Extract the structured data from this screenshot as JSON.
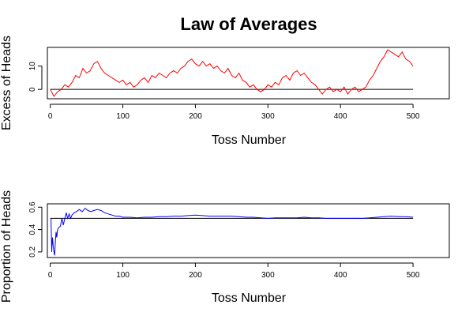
{
  "chart_title": "Law of Averages",
  "colors": {
    "excess_series": "#ff0000",
    "proportion_series": "#0000ff",
    "reference": "#000000"
  },
  "chart_data": [
    {
      "type": "line",
      "xlabel": "Toss Number",
      "ylabel": "Excess of Heads",
      "xlim": [
        0,
        500
      ],
      "ylim": [
        -4,
        18
      ],
      "xticks": [
        0,
        100,
        200,
        300,
        400,
        500
      ],
      "yticks": [
        0,
        10
      ],
      "reference_line": {
        "y": 0
      },
      "grid": false,
      "series": [
        {
          "color": "#ff0000",
          "x": [
            0,
            5,
            10,
            15,
            20,
            25,
            30,
            35,
            40,
            45,
            50,
            55,
            60,
            65,
            70,
            75,
            80,
            85,
            90,
            95,
            100,
            105,
            110,
            115,
            120,
            125,
            130,
            135,
            140,
            145,
            150,
            155,
            160,
            165,
            170,
            175,
            180,
            185,
            190,
            195,
            200,
            205,
            210,
            215,
            220,
            225,
            230,
            235,
            240,
            245,
            250,
            255,
            260,
            265,
            270,
            275,
            280,
            285,
            290,
            295,
            300,
            305,
            310,
            315,
            320,
            325,
            330,
            335,
            340,
            345,
            350,
            355,
            360,
            365,
            370,
            375,
            380,
            385,
            390,
            395,
            400,
            405,
            410,
            415,
            420,
            425,
            430,
            435,
            440,
            445,
            450,
            455,
            460,
            465,
            470,
            475,
            480,
            485,
            490,
            495,
            500
          ],
          "y": [
            0,
            -3,
            -1,
            0,
            2,
            1,
            3,
            6,
            5,
            9,
            7,
            8,
            11,
            12,
            9,
            7,
            6,
            5,
            4,
            3,
            4,
            2,
            3,
            1,
            2,
            4,
            5,
            3,
            6,
            5,
            7,
            6,
            5,
            7,
            8,
            7,
            9,
            10,
            12,
            13,
            11,
            10,
            12,
            10,
            11,
            9,
            10,
            8,
            7,
            9,
            6,
            5,
            7,
            4,
            3,
            1,
            2,
            0,
            -1,
            0,
            2,
            1,
            3,
            2,
            5,
            6,
            4,
            7,
            8,
            6,
            7,
            5,
            3,
            2,
            0,
            -2,
            0,
            1,
            -1,
            0,
            -1,
            1,
            -2,
            0,
            1,
            -1,
            0,
            1,
            4,
            6,
            9,
            12,
            14,
            17,
            16,
            15,
            14,
            16,
            13,
            12,
            10
          ]
        }
      ]
    },
    {
      "type": "line",
      "xlabel": "Toss Number",
      "ylabel": "Proportion of Heads",
      "xlim": [
        0,
        500
      ],
      "ylim": [
        0.15,
        0.63
      ],
      "xticks": [
        0,
        100,
        200,
        300,
        400,
        500
      ],
      "yticks": [
        0.2,
        0.4,
        0.6
      ],
      "reference_line": {
        "y": 0.5
      },
      "grid": false,
      "series": [
        {
          "color": "#0000ff",
          "x": [
            1,
            2,
            3,
            4,
            5,
            6,
            7,
            8,
            9,
            10,
            12,
            14,
            16,
            18,
            20,
            22,
            24,
            26,
            28,
            30,
            33,
            36,
            40,
            44,
            48,
            52,
            56,
            60,
            65,
            70,
            75,
            80,
            85,
            90,
            95,
            100,
            110,
            120,
            130,
            140,
            150,
            160,
            170,
            180,
            190,
            200,
            210,
            220,
            230,
            240,
            250,
            260,
            270,
            280,
            290,
            300,
            310,
            320,
            330,
            340,
            350,
            360,
            370,
            380,
            390,
            400,
            410,
            420,
            430,
            440,
            450,
            460,
            470,
            480,
            490,
            500
          ],
          "y": [
            0.5,
            0.2,
            0.33,
            0.25,
            0.2,
            0.17,
            0.29,
            0.38,
            0.33,
            0.4,
            0.42,
            0.43,
            0.5,
            0.44,
            0.5,
            0.55,
            0.5,
            0.54,
            0.5,
            0.53,
            0.55,
            0.56,
            0.58,
            0.56,
            0.59,
            0.57,
            0.56,
            0.57,
            0.58,
            0.57,
            0.55,
            0.54,
            0.53,
            0.52,
            0.52,
            0.51,
            0.51,
            0.505,
            0.51,
            0.51,
            0.515,
            0.515,
            0.52,
            0.52,
            0.525,
            0.53,
            0.525,
            0.52,
            0.52,
            0.52,
            0.52,
            0.515,
            0.51,
            0.51,
            0.505,
            0.5,
            0.505,
            0.505,
            0.505,
            0.505,
            0.51,
            0.505,
            0.505,
            0.5,
            0.5,
            0.5,
            0.5,
            0.5,
            0.5,
            0.505,
            0.51,
            0.515,
            0.52,
            0.515,
            0.515,
            0.51
          ]
        }
      ]
    }
  ]
}
